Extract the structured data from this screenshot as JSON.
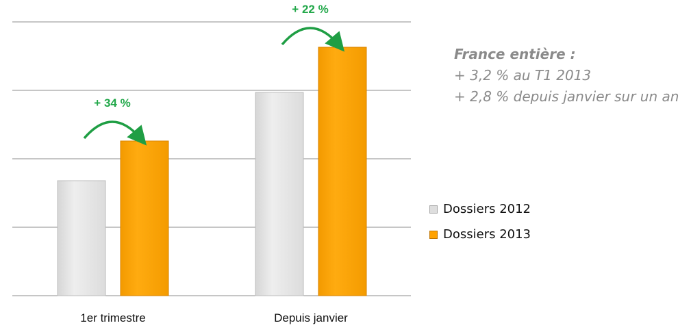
{
  "chart_data": {
    "type": "bar",
    "categories": [
      "1er trimestre",
      "Depuis janvier"
    ],
    "series": [
      {
        "name": "Dossiers 2012",
        "values": [
          168,
          297
        ]
      },
      {
        "name": "Dossiers 2013",
        "values": [
          226,
          363
        ]
      }
    ],
    "ylim": [
      0,
      400
    ],
    "grid": true,
    "legend": "right",
    "growth_labels": [
      "+ 34 %",
      "+ 22 %"
    ],
    "colors": {
      "series_2012": "#e3e3e3",
      "series_2012_edge": "#bdbdbd",
      "series_2013": "#ffa200",
      "series_2013_edge": "#d98300",
      "arrow": "#1f9e44",
      "grid": "#8c8c8c"
    }
  },
  "note": {
    "title": "France entière :",
    "lines": [
      "+ 3,2 % au T1 2013",
      "+ 2,8 % depuis janvier sur un an"
    ]
  }
}
